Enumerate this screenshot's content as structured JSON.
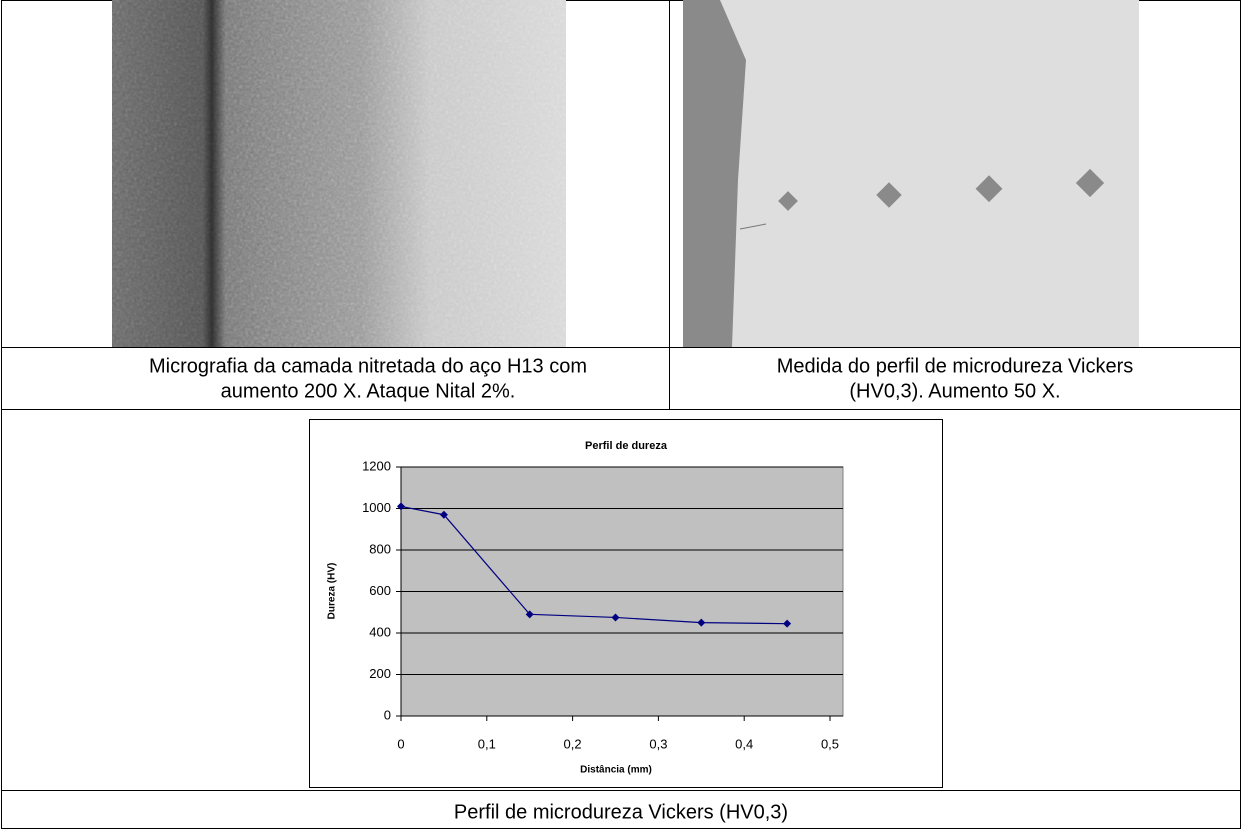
{
  "table": {
    "cells": [
      {
        "caption": [
          "Micrografia da camada nitretada do aço H13 com",
          "aumento 200 X. Ataque Nital 2%."
        ]
      },
      {
        "caption": [
          "Medida do perfil de microdureza Vickers",
          "(HV0,3). Aumento 50 X."
        ]
      },
      {
        "caption": [
          "Perfil de microdureza Vickers (HV0,3)"
        ]
      }
    ]
  },
  "chart_data": {
    "type": "line",
    "title": "Perfil de dureza",
    "x_label": "Distância (mm)",
    "y_label": "Dureza (HV)",
    "x": [
      0,
      0.05,
      0.15,
      0.25,
      0.35,
      0.45
    ],
    "values": [
      1010,
      970,
      490,
      475,
      450,
      445
    ],
    "color": "#000080",
    "xlim": [
      0,
      0.5
    ],
    "xticks": [
      0,
      {
        "value": 0.1,
        "label": "0,1"
      },
      {
        "value": 0.2,
        "label": "0,2"
      },
      {
        "value": 0.3,
        "label": "0,3"
      },
      {
        "value": 0.4,
        "label": "0,4"
      },
      {
        "value": 0.5,
        "label": "0,5"
      }
    ],
    "ylim": [
      0,
      1200
    ],
    "yticks": [
      0,
      200,
      400,
      600,
      800,
      1000,
      1200
    ],
    "grid": true
  }
}
